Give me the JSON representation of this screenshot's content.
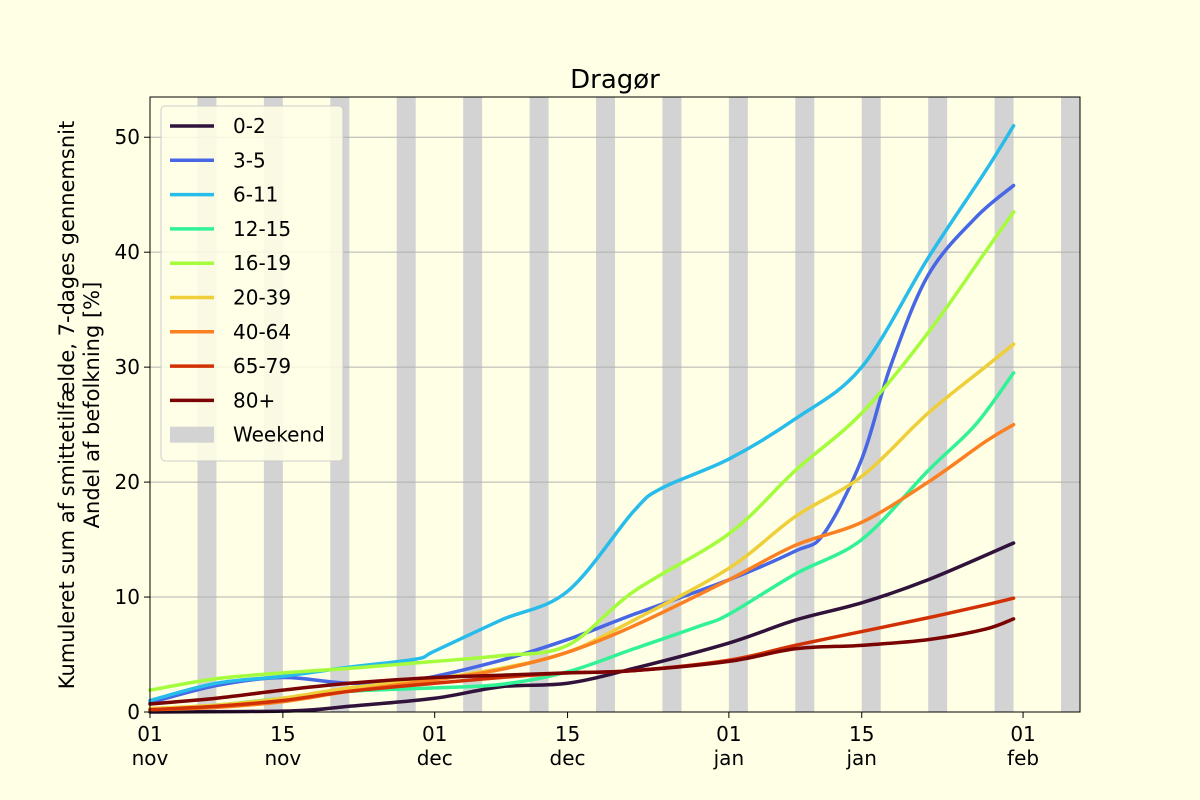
{
  "chart_data": {
    "type": "line",
    "title": "Dragør",
    "ylabel_line1": "Kumuleret sum af smittetilfælde, 7-dages gennemsnit",
    "ylabel_line2": "Andel af befolkning [%]",
    "xlabel": "",
    "x_start": "2021-11-01",
    "xlim": [
      "2021-11-01",
      "2022-02-06"
    ],
    "ylim": [
      0,
      53.5
    ],
    "y_ticks": [
      0,
      10,
      20,
      30,
      40,
      50
    ],
    "x_ticks": [
      {
        "date": "2021-11-01",
        "line1": "01",
        "line2": "nov"
      },
      {
        "date": "2021-11-15",
        "line1": "15",
        "line2": "nov"
      },
      {
        "date": "2021-12-01",
        "line1": "01",
        "line2": "dec"
      },
      {
        "date": "2021-12-15",
        "line1": "15",
        "line2": "dec"
      },
      {
        "date": "2022-01-01",
        "line1": "01",
        "line2": "jan"
      },
      {
        "date": "2022-01-15",
        "line1": "15",
        "line2": "jan"
      },
      {
        "date": "2022-02-01",
        "line1": "01",
        "line2": "feb"
      }
    ],
    "grid": "horizontal",
    "legend_position": "top-left",
    "weekend_color": "#d3d3d3",
    "weekend_label": "Weekend",
    "weekends": [
      [
        "2021-11-06",
        "2021-11-07"
      ],
      [
        "2021-11-13",
        "2021-11-14"
      ],
      [
        "2021-11-20",
        "2021-11-21"
      ],
      [
        "2021-11-27",
        "2021-11-28"
      ],
      [
        "2021-12-04",
        "2021-12-05"
      ],
      [
        "2021-12-11",
        "2021-12-12"
      ],
      [
        "2021-12-18",
        "2021-12-19"
      ],
      [
        "2021-12-25",
        "2021-12-26"
      ],
      [
        "2022-01-01",
        "2022-01-02"
      ],
      [
        "2022-01-08",
        "2022-01-09"
      ],
      [
        "2022-01-15",
        "2022-01-16"
      ],
      [
        "2022-01-22",
        "2022-01-23"
      ],
      [
        "2022-01-29",
        "2022-01-30"
      ],
      [
        "2022-02-05",
        "2022-02-06"
      ]
    ],
    "series": [
      {
        "name": "0-2",
        "color": "#30123b",
        "points": [
          [
            "2021-11-01",
            0.0
          ],
          [
            "2021-11-16",
            0.1
          ],
          [
            "2021-11-22",
            0.5
          ],
          [
            "2021-12-01",
            1.2
          ],
          [
            "2021-12-08",
            2.2
          ],
          [
            "2021-12-15",
            2.5
          ],
          [
            "2021-12-22",
            3.8
          ],
          [
            "2022-01-01",
            6.0
          ],
          [
            "2022-01-08",
            8.0
          ],
          [
            "2022-01-15",
            9.5
          ],
          [
            "2022-01-22",
            11.5
          ],
          [
            "2022-01-31",
            14.7
          ]
        ]
      },
      {
        "name": "3-5",
        "color": "#4867e4",
        "points": [
          [
            "2021-11-01",
            0.8
          ],
          [
            "2021-11-08",
            2.3
          ],
          [
            "2021-11-15",
            3.0
          ],
          [
            "2021-11-22",
            2.5
          ],
          [
            "2021-11-29",
            2.8
          ],
          [
            "2021-12-08",
            4.5
          ],
          [
            "2021-12-15",
            6.3
          ],
          [
            "2021-12-22",
            8.5
          ],
          [
            "2022-01-01",
            11.5
          ],
          [
            "2022-01-08",
            14.0
          ],
          [
            "2022-01-11",
            15.5
          ],
          [
            "2022-01-15",
            22.0
          ],
          [
            "2022-01-18",
            30.0
          ],
          [
            "2022-01-22",
            38.0
          ],
          [
            "2022-01-27",
            43.0
          ],
          [
            "2022-01-31",
            45.8
          ]
        ]
      },
      {
        "name": "6-11",
        "color": "#28bceb",
        "points": [
          [
            "2021-11-01",
            1.0
          ],
          [
            "2021-11-08",
            2.5
          ],
          [
            "2021-11-15",
            3.1
          ],
          [
            "2021-11-22",
            3.9
          ],
          [
            "2021-11-29",
            4.6
          ],
          [
            "2021-12-01",
            5.3
          ],
          [
            "2021-12-08",
            8.0
          ],
          [
            "2021-12-15",
            10.5
          ],
          [
            "2021-12-22",
            17.5
          ],
          [
            "2021-12-25",
            19.5
          ],
          [
            "2022-01-01",
            22.0
          ],
          [
            "2022-01-08",
            25.5
          ],
          [
            "2022-01-15",
            30.0
          ],
          [
            "2022-01-22",
            39.5
          ],
          [
            "2022-01-28",
            47.0
          ],
          [
            "2022-01-31",
            51.0
          ]
        ]
      },
      {
        "name": "12-15",
        "color": "#32f298",
        "points": [
          [
            "2021-11-01",
            0.2
          ],
          [
            "2021-11-08",
            0.6
          ],
          [
            "2021-11-15",
            1.2
          ],
          [
            "2021-11-22",
            1.8
          ],
          [
            "2021-12-01",
            2.1
          ],
          [
            "2021-12-08",
            2.4
          ],
          [
            "2021-12-15",
            3.5
          ],
          [
            "2021-12-22",
            5.5
          ],
          [
            "2021-12-29",
            7.5
          ],
          [
            "2022-01-01",
            8.5
          ],
          [
            "2022-01-08",
            12.0
          ],
          [
            "2022-01-15",
            15.0
          ],
          [
            "2022-01-22",
            21.0
          ],
          [
            "2022-01-27",
            25.0
          ],
          [
            "2022-01-31",
            29.5
          ]
        ]
      },
      {
        "name": "16-19",
        "color": "#a4fc3c",
        "points": [
          [
            "2021-11-01",
            1.9
          ],
          [
            "2021-11-08",
            2.9
          ],
          [
            "2021-11-15",
            3.4
          ],
          [
            "2021-11-22",
            3.8
          ],
          [
            "2021-12-01",
            4.4
          ],
          [
            "2021-12-08",
            4.9
          ],
          [
            "2021-12-15",
            5.8
          ],
          [
            "2021-12-22",
            10.5
          ],
          [
            "2022-01-01",
            15.5
          ],
          [
            "2022-01-08",
            21.0
          ],
          [
            "2022-01-15",
            26.0
          ],
          [
            "2022-01-22",
            33.0
          ],
          [
            "2022-01-28",
            40.0
          ],
          [
            "2022-01-31",
            43.5
          ]
        ]
      },
      {
        "name": "20-39",
        "color": "#eecf3a",
        "points": [
          [
            "2021-11-01",
            0.3
          ],
          [
            "2021-11-08",
            0.6
          ],
          [
            "2021-11-15",
            1.2
          ],
          [
            "2021-11-22",
            2.1
          ],
          [
            "2021-12-01",
            2.9
          ],
          [
            "2021-12-08",
            3.8
          ],
          [
            "2021-12-15",
            5.2
          ],
          [
            "2021-12-22",
            8.0
          ],
          [
            "2022-01-01",
            12.5
          ],
          [
            "2022-01-08",
            17.0
          ],
          [
            "2022-01-15",
            20.5
          ],
          [
            "2022-01-22",
            26.0
          ],
          [
            "2022-01-28",
            30.0
          ],
          [
            "2022-01-31",
            32.0
          ]
        ]
      },
      {
        "name": "40-64",
        "color": "#fb8022",
        "points": [
          [
            "2021-11-01",
            0.2
          ],
          [
            "2021-11-08",
            0.4
          ],
          [
            "2021-11-15",
            0.9
          ],
          [
            "2021-11-22",
            1.8
          ],
          [
            "2021-12-01",
            2.8
          ],
          [
            "2021-12-08",
            3.7
          ],
          [
            "2021-12-15",
            5.2
          ],
          [
            "2021-12-22",
            7.5
          ],
          [
            "2022-01-01",
            11.5
          ],
          [
            "2022-01-08",
            14.5
          ],
          [
            "2022-01-15",
            16.5
          ],
          [
            "2022-01-22",
            20.0
          ],
          [
            "2022-01-28",
            23.5
          ],
          [
            "2022-01-31",
            25.0
          ]
        ]
      },
      {
        "name": "65-79",
        "color": "#d23105",
        "points": [
          [
            "2021-11-01",
            0.2
          ],
          [
            "2021-11-08",
            0.5
          ],
          [
            "2021-11-15",
            1.0
          ],
          [
            "2021-11-22",
            1.8
          ],
          [
            "2021-12-01",
            2.5
          ],
          [
            "2021-12-08",
            3.0
          ],
          [
            "2021-12-15",
            3.4
          ],
          [
            "2021-12-22",
            3.6
          ],
          [
            "2022-01-01",
            4.5
          ],
          [
            "2022-01-08",
            5.8
          ],
          [
            "2022-01-15",
            7.0
          ],
          [
            "2022-01-22",
            8.2
          ],
          [
            "2022-01-28",
            9.3
          ],
          [
            "2022-01-31",
            9.9
          ]
        ]
      },
      {
        "name": "80+",
        "color": "#7a0403",
        "points": [
          [
            "2021-11-01",
            0.7
          ],
          [
            "2021-11-08",
            1.2
          ],
          [
            "2021-11-15",
            1.9
          ],
          [
            "2021-11-22",
            2.5
          ],
          [
            "2021-12-01",
            3.0
          ],
          [
            "2021-12-08",
            3.2
          ],
          [
            "2021-12-15",
            3.4
          ],
          [
            "2021-12-22",
            3.6
          ],
          [
            "2022-01-01",
            4.4
          ],
          [
            "2022-01-08",
            5.5
          ],
          [
            "2022-01-15",
            5.8
          ],
          [
            "2022-01-22",
            6.3
          ],
          [
            "2022-01-28",
            7.2
          ],
          [
            "2022-01-31",
            8.1
          ]
        ]
      }
    ]
  }
}
